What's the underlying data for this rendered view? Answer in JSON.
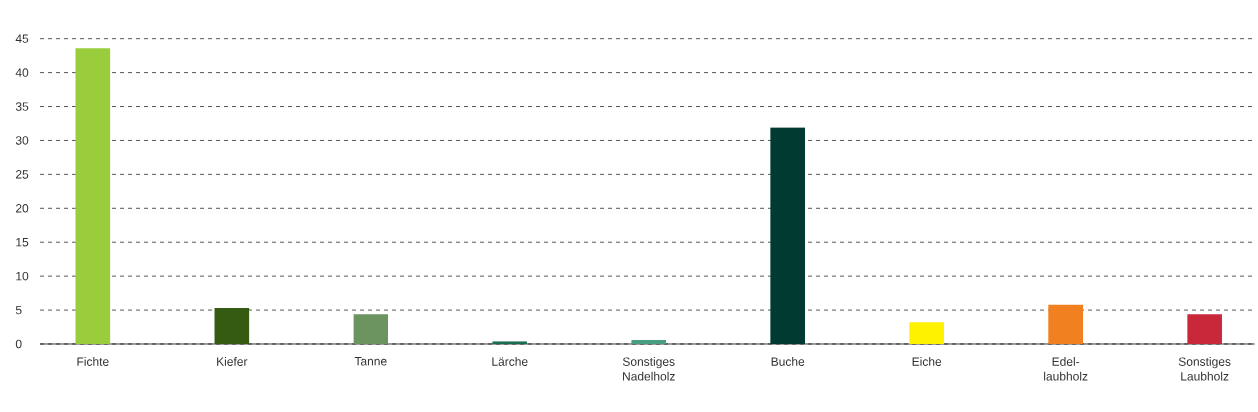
{
  "chart_data": {
    "type": "bar",
    "categories": [
      "Fichte",
      "Kiefer",
      "Tanne",
      "Lärche",
      "Sonstiges Nadelholz",
      "Buche",
      "Eiche",
      "Edel-laubholz",
      "Sonstiges Laubholz"
    ],
    "values": [
      43.6,
      5.3,
      4.4,
      0.4,
      0.6,
      31.9,
      3.2,
      5.8,
      4.4
    ],
    "colors": [
      "#9acd3c",
      "#355a12",
      "#6b9461",
      "#1a6e50",
      "#4a9e84",
      "#003a30",
      "#fff200",
      "#f08020",
      "#c8283a"
    ],
    "ylim": [
      0,
      45
    ],
    "yticks": [
      0,
      5,
      10,
      15,
      20,
      25,
      30,
      35,
      40,
      45
    ],
    "grid": "y"
  }
}
